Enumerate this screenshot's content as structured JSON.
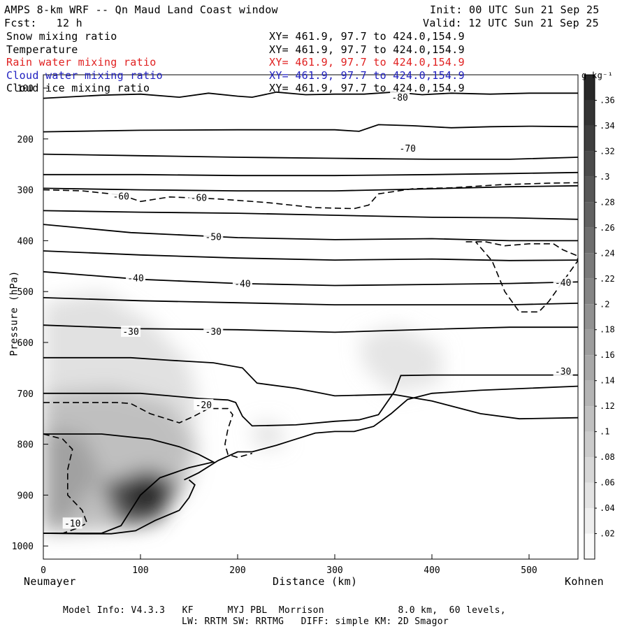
{
  "header": {
    "title": "AMPS 8-km WRF -- Qn Maud Land Coast window",
    "init": "Init: 00 UTC Sun 21 Sep 25",
    "forecast": "Fcst:   12 h",
    "valid": "Valid: 12 UTC Sun 21 Sep 25"
  },
  "fields": [
    {
      "name": "Snow mixing ratio",
      "xy": "XY= 461.9, 97.7 to 424.0,154.9",
      "color": "#000000"
    },
    {
      "name": "Temperature",
      "xy": "XY= 461.9, 97.7 to 424.0,154.9",
      "color": "#000000"
    },
    {
      "name": "Rain water mixing ratio",
      "xy": "XY= 461.9, 97.7 to 424.0,154.9",
      "color": "#e02020"
    },
    {
      "name": "Cloud water mixing ratio",
      "xy": "XY= 461.9, 97.7 to 424.0,154.9",
      "color": "#2020c0"
    },
    {
      "name": "Cloud ice mixing ratio",
      "xy": "XY= 461.9, 97.7 to 424.0,154.9",
      "color": "#000000"
    }
  ],
  "model_info": {
    "line1": "Model Info: V4.3.3   KF      MYJ PBL  Morrison             8.0 km,  60 levels,",
    "line2": "LW: RRTM SW: RRTMG   DIFF: simple KM: 2D Smagor"
  },
  "chart_data": {
    "type": "contour",
    "xlabel": "Distance (km)",
    "ylabel": "Pressure (hPa)",
    "xlim": [
      0,
      550
    ],
    "ylim": [
      1050,
      100
    ],
    "x_ticks": [
      0,
      100,
      200,
      300,
      400,
      500
    ],
    "y_ticks": [
      100,
      200,
      300,
      400,
      500,
      600,
      700,
      800,
      900,
      1000
    ],
    "left_endpoint": "Neumayer",
    "right_endpoint": "Kohnen",
    "colorbar": {
      "unit": "g kg⁻¹",
      "levels": [
        ".02",
        ".04",
        ".06",
        ".08",
        ".1",
        ".12",
        ".14",
        ".16",
        ".18",
        ".2",
        ".22",
        ".24",
        ".26",
        ".28",
        ".3",
        ".32",
        ".34",
        ".36"
      ],
      "range": [
        0,
        0.38
      ]
    },
    "temperature_labels": [
      {
        "label": "-80",
        "x": 367,
        "p": 118
      },
      {
        "label": "-70",
        "x": 375,
        "p": 218
      },
      {
        "label": "-60",
        "x": 80,
        "p": 312
      },
      {
        "label": "-60",
        "x": 160,
        "p": 315
      },
      {
        "label": "-50",
        "x": 175,
        "p": 392
      },
      {
        "label": "-40",
        "x": 95,
        "p": 473
      },
      {
        "label": "-40",
        "x": 205,
        "p": 484
      },
      {
        "label": "-40",
        "x": 535,
        "p": 482
      },
      {
        "label": "-30",
        "x": 90,
        "p": 578
      },
      {
        "label": "-30",
        "x": 175,
        "p": 578
      },
      {
        "label": "-30",
        "x": 535,
        "p": 656
      },
      {
        "label": "-20",
        "x": 165,
        "p": 722
      },
      {
        "label": "-10",
        "x": 30,
        "p": 955
      }
    ],
    "snow_maxima": [
      {
        "x": 100,
        "p": 915,
        "value": 0.33
      },
      {
        "x": 20,
        "p": 800,
        "value": 0.16
      },
      {
        "x": 380,
        "p": 650,
        "value": 0.05
      },
      {
        "x": 230,
        "p": 780,
        "value": 0.05
      }
    ]
  }
}
